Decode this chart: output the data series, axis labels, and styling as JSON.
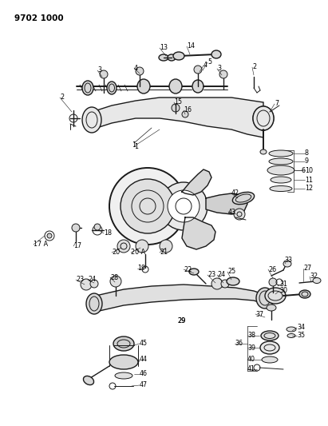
{
  "title": "9702 1000",
  "bg": "#ffffff",
  "lc": "#1a1a1a",
  "tc": "#000000",
  "fig_w": 4.11,
  "fig_h": 5.33,
  "dpi": 100
}
